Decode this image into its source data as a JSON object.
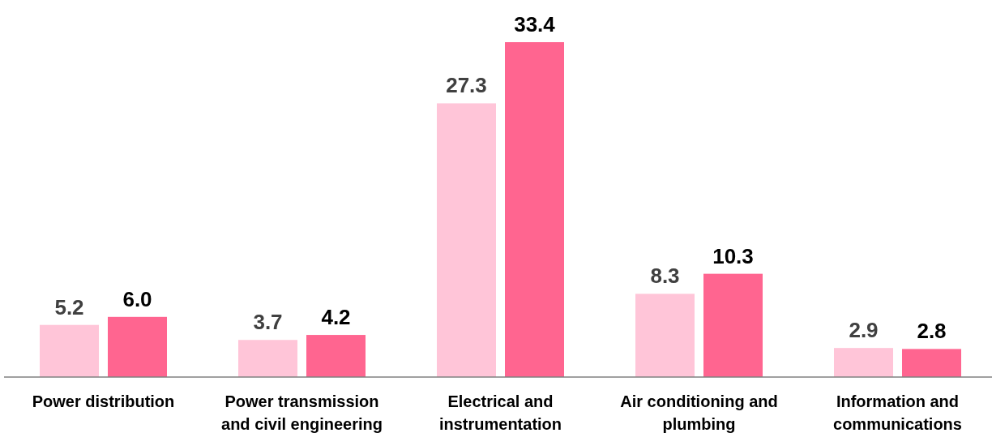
{
  "chart_data": {
    "type": "bar",
    "categories": [
      "Power distribution",
      "Power transmission and civil engineering",
      "Electrical and instrumentation",
      "Air conditioning and plumbing",
      "Information and communications"
    ],
    "series": [
      {
        "color": "#ffc5d8",
        "values": [
          5.2,
          3.7,
          27.3,
          8.3,
          2.9
        ],
        "value_labels": [
          "5.2",
          "3.7",
          "27.3",
          "8.3",
          "2.9"
        ]
      },
      {
        "color": "#ff6590",
        "values": [
          6.0,
          4.2,
          33.4,
          10.3,
          2.8
        ],
        "value_labels": [
          "6.0",
          "4.2",
          "33.4",
          "10.3",
          "2.8"
        ]
      }
    ]
  }
}
